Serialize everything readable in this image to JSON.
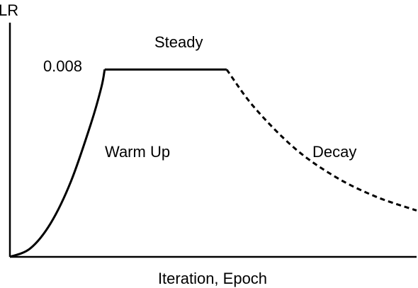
{
  "chart_data": {
    "type": "line",
    "title": "",
    "xlabel": "Iteration, Epoch",
    "ylabel": "LR",
    "peak_label": "0.008",
    "peak_value": 0.008,
    "xlim": [
      0,
      100
    ],
    "ylim": [
      0,
      0.01
    ],
    "grid": false,
    "legend": "none",
    "phases": [
      {
        "name": "Warm Up",
        "line_style": "solid",
        "x": [
          0,
          5,
          10,
          15,
          20,
          22.5,
          23.3
        ],
        "y": [
          0,
          0.00036,
          0.00143,
          0.00322,
          0.00573,
          0.00725,
          0.008
        ]
      },
      {
        "name": "Steady",
        "line_style": "solid",
        "x": [
          23.3,
          53.3
        ],
        "y": [
          0.008,
          0.008
        ]
      },
      {
        "name": "Decay",
        "line_style": "dashed",
        "x": [
          53.3,
          60,
          70,
          80,
          90,
          100
        ],
        "y": [
          0.008,
          0.0064,
          0.00464,
          0.00342,
          0.00257,
          0.00198
        ]
      }
    ],
    "colors": {
      "line": "#000000",
      "axis": "#000000"
    }
  }
}
